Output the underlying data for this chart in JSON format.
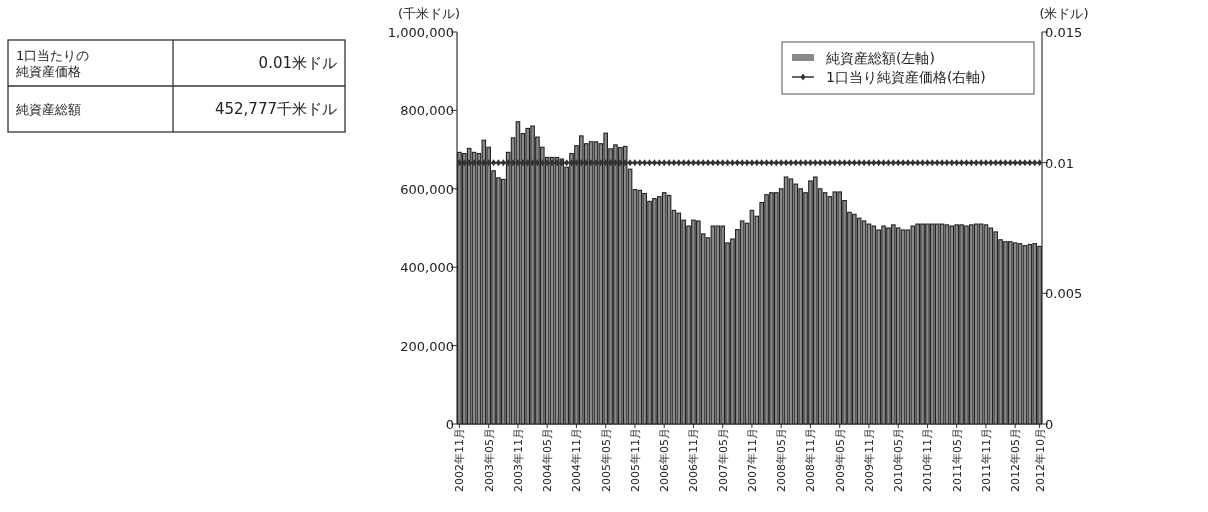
{
  "chart_data": {
    "type": "bar",
    "ylabel": "(千米ドル)",
    "y2label": "(米ドル)",
    "annotations": [
      "1口当たりの純資産価格",
      "0.01米ドル",
      "純資産総額",
      "452,777千米ドル"
    ],
    "categories": [
      "2002年11月",
      null,
      null,
      null,
      null,
      null,
      "2003年05月",
      null,
      null,
      null,
      null,
      null,
      "2003年11月",
      null,
      null,
      null,
      null,
      null,
      "2004年05月",
      null,
      null,
      null,
      null,
      null,
      "2004年11月",
      null,
      null,
      null,
      null,
      null,
      "2005年05月",
      null,
      null,
      null,
      null,
      null,
      "2005年11月",
      null,
      null,
      null,
      null,
      null,
      "2006年05月",
      null,
      null,
      null,
      null,
      null,
      "2006年11月",
      null,
      null,
      null,
      null,
      null,
      "2007年05月",
      null,
      null,
      null,
      null,
      null,
      "2007年11月",
      null,
      null,
      null,
      null,
      null,
      "2008年05月",
      null,
      null,
      null,
      null,
      null,
      "2008年11月",
      null,
      null,
      null,
      null,
      null,
      "2009年05月",
      null,
      null,
      null,
      null,
      null,
      "2009年11月",
      null,
      null,
      null,
      null,
      null,
      "2010年05月",
      null,
      null,
      null,
      null,
      null,
      "2010年11月",
      null,
      null,
      null,
      null,
      null,
      "2011年05月",
      null,
      null,
      null,
      null,
      null,
      "2011年11月",
      null,
      null,
      null,
      null,
      null,
      "2012年05月",
      null,
      null,
      null,
      null,
      "2012年10月"
    ],
    "series": [
      {
        "name": "純資産総額(左軸)",
        "color": "#8a8a8a",
        "values": [
          693000,
          690000,
          703000,
          693000,
          690000,
          724000,
          706000,
          646000,
          628000,
          624000,
          693000,
          730000,
          771000,
          741000,
          754000,
          760000,
          732000,
          706000,
          680000,
          680000,
          680000,
          676000,
          655000,
          690000,
          710000,
          735000,
          715000,
          720000,
          720000,
          715000,
          742000,
          702000,
          712000,
          705000,
          708000,
          650000,
          598000,
          596000,
          588000,
          568000,
          575000,
          580000,
          590000,
          583000,
          545000,
          538000,
          520000,
          505000,
          520000,
          518000,
          485000,
          475000,
          505000,
          505000,
          505000,
          462000,
          472000,
          496000,
          518000,
          512000,
          545000,
          530000,
          565000,
          585000,
          590000,
          590000,
          600000,
          630000,
          625000,
          612000,
          600000,
          590000,
          620000,
          630000,
          600000,
          590000,
          580000,
          592000,
          592000,
          570000,
          540000,
          535000,
          525000,
          518000,
          510000,
          505000,
          495000,
          505000,
          500000,
          508000,
          500000,
          495000,
          495000,
          505000,
          510000,
          510000,
          510000,
          510000,
          510000,
          510000,
          508000,
          505000,
          508000,
          508000,
          505000,
          508000,
          510000,
          510000,
          508000,
          500000,
          490000,
          470000,
          465000,
          465000,
          462000,
          460000,
          455000,
          458000,
          460000,
          453000
        ]
      },
      {
        "name": "1口当り純資産価格(右軸)",
        "type": "line",
        "axis": "y2",
        "color": "#333333",
        "marker": "diamond",
        "values": [
          0.01,
          0.01,
          0.01,
          0.01,
          0.01,
          0.01,
          0.01,
          0.01,
          0.01,
          0.01,
          0.01,
          0.01,
          0.01,
          0.01,
          0.01,
          0.01,
          0.01,
          0.01,
          0.01,
          0.01,
          0.01,
          0.01,
          0.01,
          0.01,
          0.01,
          0.01,
          0.01,
          0.01,
          0.01,
          0.01,
          0.01,
          0.01,
          0.01,
          0.01,
          0.01,
          0.01,
          0.01,
          0.01,
          0.01,
          0.01,
          0.01,
          0.01,
          0.01,
          0.01,
          0.01,
          0.01,
          0.01,
          0.01,
          0.01,
          0.01,
          0.01,
          0.01,
          0.01,
          0.01,
          0.01,
          0.01,
          0.01,
          0.01,
          0.01,
          0.01,
          0.01,
          0.01,
          0.01,
          0.01,
          0.01,
          0.01,
          0.01,
          0.01,
          0.01,
          0.01,
          0.01,
          0.01,
          0.01,
          0.01,
          0.01,
          0.01,
          0.01,
          0.01,
          0.01,
          0.01,
          0.01,
          0.01,
          0.01,
          0.01,
          0.01,
          0.01,
          0.01,
          0.01,
          0.01,
          0.01,
          0.01,
          0.01,
          0.01,
          0.01,
          0.01,
          0.01,
          0.01,
          0.01,
          0.01,
          0.01,
          0.01,
          0.01,
          0.01,
          0.01,
          0.01,
          0.01,
          0.01,
          0.01,
          0.01,
          0.01,
          0.01,
          0.01,
          0.01,
          0.01,
          0.01,
          0.01,
          0.01,
          0.01,
          0.01,
          0.01
        ]
      }
    ],
    "ylim": [
      0,
      1000000
    ],
    "yticks": [
      {
        "value": 0,
        "label": "0"
      },
      {
        "value": 200000,
        "label": "200,000"
      },
      {
        "value": 400000,
        "label": "400,000"
      },
      {
        "value": 600000,
        "label": "600,000"
      },
      {
        "value": 800000,
        "label": "800,000"
      },
      {
        "value": 1000000,
        "label": "1,000,000"
      }
    ],
    "y2lim": [
      0,
      0.015
    ],
    "y2ticks": [
      0,
      0.005,
      0.01,
      0.015
    ],
    "legend": "top right",
    "grid": false
  }
}
